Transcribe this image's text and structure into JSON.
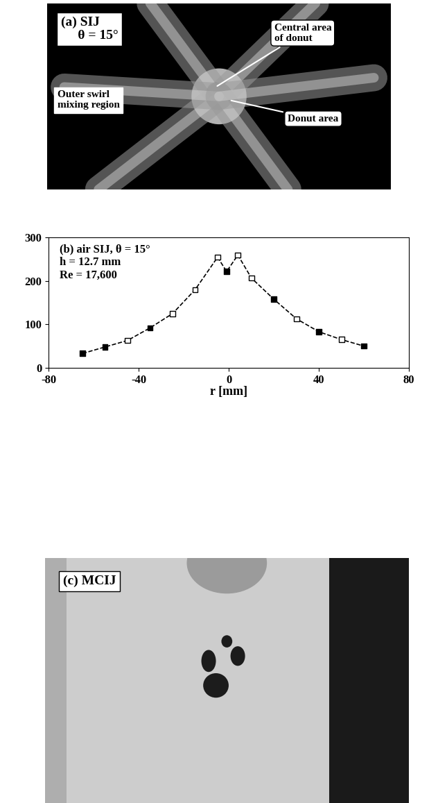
{
  "panel_a": {
    "label": "(a) SIJ",
    "angle_label": "θ = 15°",
    "callouts": [
      "Central area\nof donut",
      "Outer swirl\nmixing region",
      "Donut area"
    ]
  },
  "chart_data": {
    "type": "line",
    "texts": [
      "(b) air SIJ, θ = 15°",
      "h = 12.7 mm",
      "Re = 17,600"
    ],
    "x_label": "r [mm]",
    "x": [
      -65,
      -55,
      -45,
      -35,
      -25,
      -15,
      -5,
      -1,
      4,
      10,
      20,
      30,
      40,
      50,
      60
    ],
    "values": [
      33,
      48,
      63,
      92,
      125,
      180,
      255,
      222,
      260,
      207,
      158,
      113,
      83,
      65,
      50
    ],
    "colors": [
      "black",
      "black",
      "white",
      "black",
      "white",
      "white",
      "white",
      "black",
      "white",
      "white",
      "black",
      "white",
      "black",
      "white",
      "black"
    ],
    "color": "black",
    "marker": "square",
    "line_style": "dashed",
    "xlim": [
      -80,
      80
    ],
    "xticks": [
      -80,
      -40,
      0,
      40,
      80
    ],
    "ylim": [
      0,
      300
    ],
    "yticks": [
      0,
      100,
      200,
      300
    ],
    "grid": false
  },
  "panel_c": {
    "label": "(c) MCIJ"
  }
}
